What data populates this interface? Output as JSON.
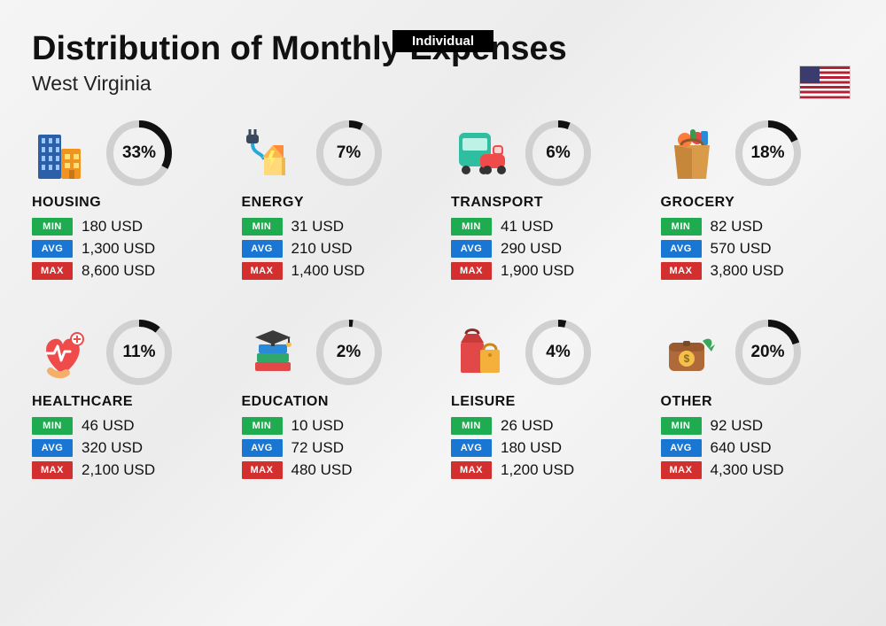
{
  "top_label": "Individual",
  "title": "Distribution of Monthly Expenses",
  "subtitle": "West Virginia",
  "badge_labels": {
    "min": "MIN",
    "avg": "AVG",
    "max": "MAX"
  },
  "badge_colors": {
    "min": "#1fab4f",
    "avg": "#1976d2",
    "max": "#d32f2f"
  },
  "ring": {
    "bg": "#d0d0d0",
    "fg": "#111111",
    "stroke_width": 8,
    "radius": 33
  },
  "currency_suffix": " USD",
  "categories": [
    {
      "key": "housing",
      "name": "HOUSING",
      "pct": 33,
      "pct_label": "33%",
      "min": "180",
      "avg": "1,300",
      "max": "8,600",
      "icon": "buildings"
    },
    {
      "key": "energy",
      "name": "ENERGY",
      "pct": 7,
      "pct_label": "7%",
      "min": "31",
      "avg": "210",
      "max": "1,400",
      "icon": "energy"
    },
    {
      "key": "transport",
      "name": "TRANSPORT",
      "pct": 6,
      "pct_label": "6%",
      "min": "41",
      "avg": "290",
      "max": "1,900",
      "icon": "transport"
    },
    {
      "key": "grocery",
      "name": "GROCERY",
      "pct": 18,
      "pct_label": "18%",
      "min": "82",
      "avg": "570",
      "max": "3,800",
      "icon": "grocery"
    },
    {
      "key": "healthcare",
      "name": "HEALTHCARE",
      "pct": 11,
      "pct_label": "11%",
      "min": "46",
      "avg": "320",
      "max": "2,100",
      "icon": "healthcare"
    },
    {
      "key": "education",
      "name": "EDUCATION",
      "pct": 2,
      "pct_label": "2%",
      "min": "10",
      "avg": "72",
      "max": "480",
      "icon": "education"
    },
    {
      "key": "leisure",
      "name": "LEISURE",
      "pct": 4,
      "pct_label": "4%",
      "min": "26",
      "avg": "180",
      "max": "1,200",
      "icon": "leisure"
    },
    {
      "key": "other",
      "name": "OTHER",
      "pct": 20,
      "pct_label": "20%",
      "min": "92",
      "avg": "640",
      "max": "4,300",
      "icon": "other"
    }
  ]
}
